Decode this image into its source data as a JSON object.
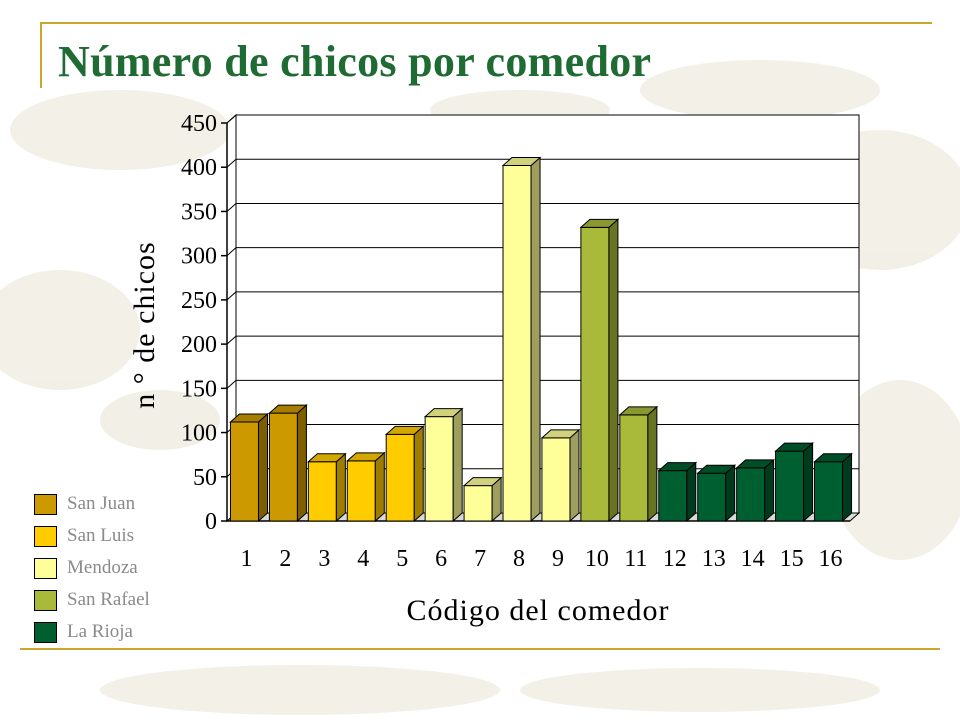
{
  "slide": {
    "title": "Número de chicos por comedor"
  },
  "colors": {
    "accent_line": "#c9a72e",
    "title": "#1f6b34"
  },
  "chart_data": {
    "type": "bar",
    "style": "3d",
    "title": "",
    "xlabel": "Código del comedor",
    "ylabel": "n ° de chicos",
    "ylim": [
      0,
      450
    ],
    "yticks": [
      "0",
      "50",
      "100",
      "150",
      "200",
      "250",
      "300",
      "350",
      "400",
      "450"
    ],
    "grid": true,
    "legend_position": "bottom-left",
    "categories": [
      "1",
      "2",
      "3",
      "4",
      "5",
      "6",
      "7",
      "8",
      "9",
      "10",
      "11",
      "12",
      "13",
      "14",
      "15",
      "16"
    ],
    "values": [
      112,
      122,
      67,
      68,
      98,
      118,
      40,
      402,
      94,
      332,
      120,
      57,
      54,
      60,
      79,
      67
    ],
    "groups": [
      {
        "name": "San Juan",
        "color": "#cc9900",
        "categories": [
          "1",
          "2"
        ]
      },
      {
        "name": "San Luis",
        "color": "#ffcc00",
        "categories": [
          "3",
          "4",
          "5"
        ]
      },
      {
        "name": "Mendoza",
        "color": "#ffff99",
        "categories": [
          "6",
          "7",
          "8",
          "9"
        ]
      },
      {
        "name": "San Rafael",
        "color": "#a9b93a",
        "categories": [
          "10",
          "11"
        ]
      },
      {
        "name": "La Rioja",
        "color": "#005f30",
        "categories": [
          "12",
          "13",
          "14",
          "15",
          "16"
        ]
      }
    ]
  }
}
